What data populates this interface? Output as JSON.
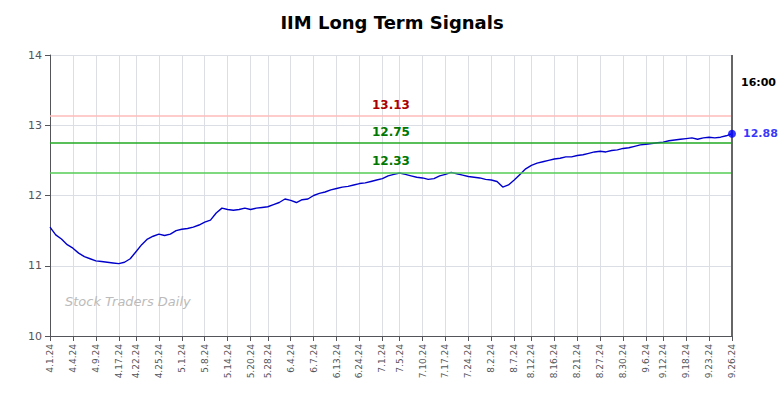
{
  "chart_data": {
    "type": "line",
    "title": "IIM Long Term Signals",
    "categories": [
      "4.1.24",
      null,
      null,
      null,
      "4.4.24",
      null,
      null,
      null,
      "4.9.24",
      null,
      null,
      null,
      "4.17.24",
      null,
      null,
      "4.22.24",
      null,
      null,
      null,
      "4.25.24",
      null,
      null,
      null,
      "5.1.24",
      null,
      null,
      null,
      "5.8.24",
      null,
      null,
      null,
      "5.14.24",
      null,
      null,
      null,
      "5.20.24",
      null,
      null,
      "5.28.24",
      null,
      null,
      null,
      "6.4.24",
      null,
      null,
      null,
      "6.7.24",
      null,
      null,
      null,
      "6.13.24",
      null,
      null,
      null,
      "6.24.24",
      null,
      null,
      null,
      "7.1.24",
      null,
      null,
      "7.5.24",
      null,
      null,
      null,
      "7.10.24",
      null,
      null,
      null,
      "7.17.24",
      null,
      null,
      null,
      "7.24.24",
      null,
      null,
      null,
      "8.2.24",
      null,
      null,
      null,
      "8.7.24",
      null,
      null,
      "8.12.24",
      null,
      null,
      null,
      "8.16.24",
      null,
      null,
      null,
      "8.21.24",
      null,
      null,
      null,
      "8.27.24",
      null,
      null,
      null,
      "8.30.24",
      null,
      null,
      null,
      "9.6.24",
      null,
      null,
      "9.12.24",
      null,
      null,
      null,
      "9.18.24",
      null,
      null,
      null,
      "9.23.24",
      null,
      null,
      null,
      "9.26.24"
    ],
    "values": [
      11.55,
      11.44,
      11.38,
      11.3,
      11.25,
      11.18,
      11.13,
      11.1,
      11.07,
      11.06,
      11.05,
      11.04,
      11.03,
      11.05,
      11.1,
      11.2,
      11.3,
      11.38,
      11.42,
      11.45,
      11.43,
      11.45,
      11.5,
      11.52,
      11.53,
      11.55,
      11.58,
      11.62,
      11.65,
      11.75,
      11.82,
      11.8,
      11.79,
      11.8,
      11.82,
      11.8,
      11.82,
      11.83,
      11.84,
      11.87,
      11.9,
      11.95,
      11.93,
      11.9,
      11.94,
      11.95,
      12.0,
      12.03,
      12.05,
      12.08,
      12.1,
      12.12,
      12.13,
      12.15,
      12.17,
      12.18,
      12.2,
      12.22,
      12.24,
      12.28,
      12.3,
      12.32,
      12.3,
      12.28,
      12.26,
      12.25,
      12.23,
      12.24,
      12.28,
      12.3,
      12.33,
      12.31,
      12.29,
      12.27,
      12.26,
      12.25,
      12.23,
      12.22,
      12.2,
      12.12,
      12.15,
      12.22,
      12.3,
      12.38,
      12.43,
      12.46,
      12.48,
      12.5,
      12.52,
      12.53,
      12.55,
      12.55,
      12.57,
      12.58,
      12.6,
      12.62,
      12.63,
      12.62,
      12.64,
      12.65,
      12.67,
      12.68,
      12.7,
      12.72,
      12.73,
      12.74,
      12.75,
      12.76,
      12.78,
      12.79,
      12.8,
      12.81,
      12.82,
      12.8,
      12.82,
      12.83,
      12.82,
      12.83,
      12.85,
      12.88
    ],
    "color": "#0000cc",
    "ylim": [
      10,
      14
    ],
    "yticks": [
      10,
      11,
      12,
      13,
      14
    ],
    "grid": true,
    "hlines": [
      {
        "value": 13.13,
        "label": "13.13",
        "color": "#ffbbbb",
        "label_color": "#aa0000"
      },
      {
        "value": 12.75,
        "label": "12.75",
        "color": "#22aa22",
        "label_color": "#007700"
      },
      {
        "value": 12.33,
        "label": "12.33",
        "color": "#55cc55",
        "label_color": "#007700"
      }
    ],
    "end_line_color": "#666666",
    "end_marker_color": "#0000ff",
    "time_annotation": "16:00",
    "value_annotation": {
      "text": "12.88",
      "color": "#0000ff"
    },
    "watermark": "Stock Traders Daily",
    "watermark_color": "#bbbbbb"
  }
}
